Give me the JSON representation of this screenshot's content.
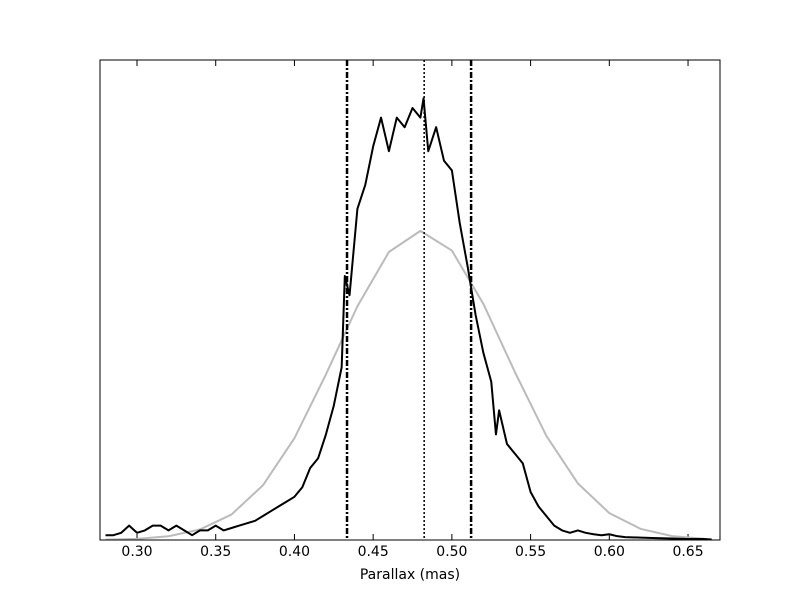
{
  "chart_data": {
    "type": "line",
    "xlabel": "Parallax (mas)",
    "xlim": [
      0.2765,
      0.6703
    ],
    "ylim": [
      0,
      1
    ],
    "xticks": [
      {
        "value": 0.3,
        "label": "0.30"
      },
      {
        "value": 0.35,
        "label": "0.35"
      },
      {
        "value": 0.4,
        "label": "0.40"
      },
      {
        "value": 0.45,
        "label": "0.45"
      },
      {
        "value": 0.5,
        "label": "0.50"
      },
      {
        "value": 0.55,
        "label": "0.55"
      },
      {
        "value": 0.6,
        "label": "0.60"
      },
      {
        "value": 0.65,
        "label": "0.65"
      }
    ],
    "series": [
      {
        "color": "#bbbbbb",
        "width": 2,
        "x": [
          0.28,
          0.3,
          0.32,
          0.34,
          0.36,
          0.38,
          0.4,
          0.42,
          0.44,
          0.46,
          0.48,
          0.5,
          0.52,
          0.54,
          0.56,
          0.58,
          0.6,
          0.62,
          0.64,
          0.66
        ],
        "values": [
          0.0007,
          0.0024,
          0.0078,
          0.022,
          0.053,
          0.114,
          0.212,
          0.345,
          0.487,
          0.6,
          0.644,
          0.603,
          0.492,
          0.35,
          0.217,
          0.118,
          0.056,
          0.023,
          0.008,
          0.0026
        ]
      },
      {
        "color": "#000000",
        "width": 2,
        "x": [
          0.28,
          0.285,
          0.29,
          0.295,
          0.3,
          0.305,
          0.31,
          0.315,
          0.32,
          0.325,
          0.33,
          0.335,
          0.34,
          0.345,
          0.35,
          0.355,
          0.36,
          0.365,
          0.37,
          0.375,
          0.38,
          0.385,
          0.39,
          0.395,
          0.4,
          0.405,
          0.41,
          0.415,
          0.42,
          0.425,
          0.43,
          0.432,
          0.435,
          0.44,
          0.445,
          0.45,
          0.455,
          0.46,
          0.465,
          0.47,
          0.475,
          0.48,
          0.482,
          0.485,
          0.49,
          0.495,
          0.5,
          0.505,
          0.51,
          0.515,
          0.52,
          0.525,
          0.528,
          0.53,
          0.535,
          0.54,
          0.545,
          0.55,
          0.555,
          0.56,
          0.565,
          0.57,
          0.575,
          0.58,
          0.585,
          0.59,
          0.595,
          0.6,
          0.605,
          0.61,
          0.62,
          0.63,
          0.64,
          0.65,
          0.66,
          0.665
        ],
        "values": [
          0.01,
          0.01,
          0.015,
          0.03,
          0.015,
          0.02,
          0.03,
          0.03,
          0.02,
          0.03,
          0.02,
          0.01,
          0.02,
          0.02,
          0.03,
          0.02,
          0.025,
          0.03,
          0.035,
          0.04,
          0.05,
          0.06,
          0.07,
          0.08,
          0.09,
          0.11,
          0.15,
          0.17,
          0.22,
          0.28,
          0.36,
          0.55,
          0.51,
          0.69,
          0.74,
          0.82,
          0.88,
          0.81,
          0.88,
          0.86,
          0.9,
          0.88,
          0.92,
          0.81,
          0.86,
          0.79,
          0.77,
          0.66,
          0.57,
          0.47,
          0.39,
          0.33,
          0.22,
          0.27,
          0.2,
          0.18,
          0.16,
          0.1,
          0.07,
          0.05,
          0.03,
          0.02,
          0.015,
          0.02,
          0.015,
          0.012,
          0.01,
          0.012,
          0.008,
          0.006,
          0.005,
          0.004,
          0.003,
          0.002,
          0.002,
          0.001
        ]
      }
    ],
    "vlines": [
      {
        "x": 0.4334,
        "style": "dashdot"
      },
      {
        "x": 0.4824,
        "style": "dotted"
      },
      {
        "x": 0.5122,
        "style": "dashdot"
      }
    ]
  }
}
